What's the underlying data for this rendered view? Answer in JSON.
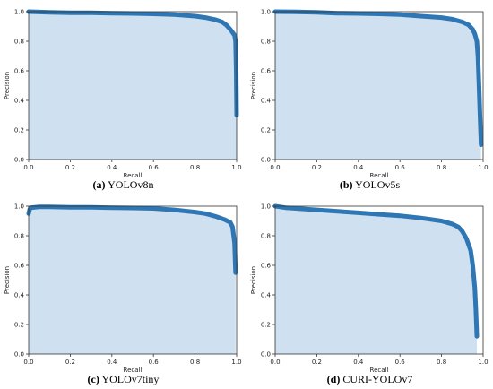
{
  "chart_data": [
    {
      "type": "area",
      "caption_letter": "(a)",
      "caption_text": "YOLOv8n",
      "xlabel": "Recall",
      "ylabel": "Precision",
      "xlim": [
        0,
        1
      ],
      "ylim": [
        0,
        1
      ],
      "xticks": [
        "0.0",
        "0.2",
        "0.4",
        "0.6",
        "0.8",
        "1.0"
      ],
      "yticks": [
        "0.0",
        "0.2",
        "0.4",
        "0.6",
        "0.8",
        "1.0"
      ],
      "grid": false,
      "color": "#2f77b4",
      "fill_color": "#cfe0f0",
      "x": [
        0.0,
        0.1,
        0.2,
        0.3,
        0.4,
        0.5,
        0.6,
        0.7,
        0.8,
        0.85,
        0.9,
        0.93,
        0.95,
        0.97,
        0.98,
        0.99,
        0.995,
        0.998,
        1.0
      ],
      "y": [
        1.0,
        0.995,
        0.993,
        0.992,
        0.99,
        0.988,
        0.985,
        0.98,
        0.97,
        0.96,
        0.945,
        0.93,
        0.91,
        0.88,
        0.86,
        0.84,
        0.8,
        0.6,
        0.3
      ]
    },
    {
      "type": "area",
      "caption_letter": "(b)",
      "caption_text": "YOLOv5s",
      "xlabel": "Recall",
      "ylabel": "Precision",
      "xlim": [
        0,
        1
      ],
      "ylim": [
        0,
        1
      ],
      "xticks": [
        "0.0",
        "0.2",
        "0.4",
        "0.6",
        "0.8",
        "1.0"
      ],
      "yticks": [
        "0.0",
        "0.2",
        "0.4",
        "0.6",
        "0.8",
        "1.0"
      ],
      "grid": false,
      "color": "#2f77b4",
      "fill_color": "#cfe0f0",
      "x": [
        0.0,
        0.1,
        0.2,
        0.3,
        0.4,
        0.5,
        0.6,
        0.7,
        0.8,
        0.85,
        0.9,
        0.93,
        0.95,
        0.96,
        0.97,
        0.975,
        0.98,
        0.985,
        0.99
      ],
      "y": [
        1.0,
        0.998,
        0.995,
        0.99,
        0.988,
        0.985,
        0.98,
        0.97,
        0.96,
        0.95,
        0.93,
        0.91,
        0.88,
        0.85,
        0.8,
        0.7,
        0.5,
        0.3,
        0.1
      ]
    },
    {
      "type": "area",
      "caption_letter": "(c)",
      "caption_text": "YOLOv7tiny",
      "xlabel": "Recall",
      "ylabel": "Precision",
      "xlim": [
        0,
        1
      ],
      "ylim": [
        0,
        1
      ],
      "xticks": [
        "0.0",
        "0.2",
        "0.4",
        "0.6",
        "0.8",
        "1.0"
      ],
      "yticks": [
        "0.0",
        "0.2",
        "0.4",
        "0.6",
        "0.8",
        "1.0"
      ],
      "grid": false,
      "color": "#2f77b4",
      "fill_color": "#cfe0f0",
      "x": [
        0.0,
        0.005,
        0.01,
        0.05,
        0.1,
        0.2,
        0.3,
        0.4,
        0.5,
        0.6,
        0.7,
        0.8,
        0.85,
        0.9,
        0.94,
        0.97,
        0.98,
        0.99,
        0.995
      ],
      "y": [
        0.95,
        0.98,
        0.99,
        0.995,
        0.995,
        0.993,
        0.992,
        0.99,
        0.988,
        0.985,
        0.975,
        0.96,
        0.95,
        0.93,
        0.91,
        0.89,
        0.86,
        0.75,
        0.55
      ]
    },
    {
      "type": "area",
      "caption_letter": "(d)",
      "caption_text": "CURI-YOLOv7",
      "xlabel": "Recall",
      "ylabel": "Precision",
      "xlim": [
        0,
        1
      ],
      "ylim": [
        0,
        1
      ],
      "xticks": [
        "0.0",
        "0.2",
        "0.4",
        "0.6",
        "0.8",
        "1.0"
      ],
      "yticks": [
        "0.0",
        "0.2",
        "0.4",
        "0.6",
        "0.8",
        "1.0"
      ],
      "grid": false,
      "color": "#2f77b4",
      "fill_color": "#cfe0f0",
      "x": [
        0.0,
        0.05,
        0.1,
        0.2,
        0.3,
        0.4,
        0.5,
        0.6,
        0.7,
        0.8,
        0.85,
        0.88,
        0.9,
        0.92,
        0.94,
        0.95,
        0.96,
        0.965,
        0.97
      ],
      "y": [
        1.0,
        0.99,
        0.985,
        0.975,
        0.965,
        0.955,
        0.945,
        0.935,
        0.92,
        0.9,
        0.88,
        0.86,
        0.83,
        0.78,
        0.7,
        0.6,
        0.45,
        0.3,
        0.12
      ]
    }
  ]
}
